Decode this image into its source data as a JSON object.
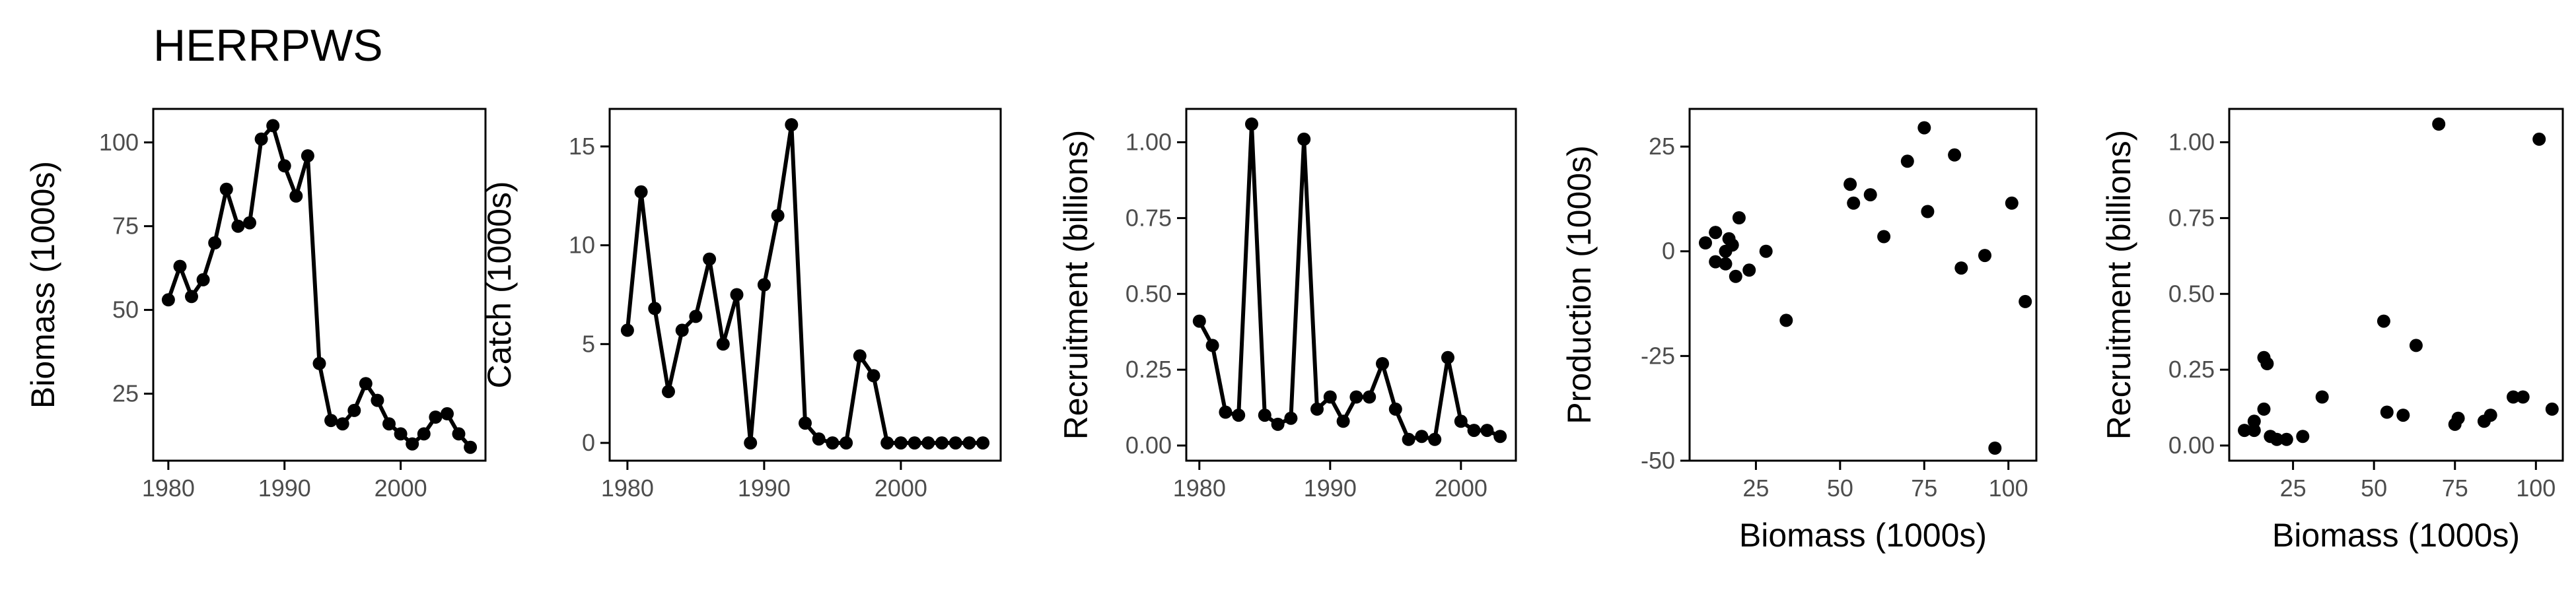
{
  "title": "HERRPWS",
  "style": {
    "ink": "#000000",
    "tick_color": "#4d4d4d",
    "background": "#ffffff"
  },
  "chart_data": [
    {
      "type": "line",
      "xlabel": "",
      "ylabel": "Biomass (1000s)",
      "xlim": [
        1978.7,
        2007.3
      ],
      "ylim": [
        5,
        110
      ],
      "xticks": [
        1980,
        1990,
        2000
      ],
      "yticks": [
        25,
        50,
        75,
        100
      ],
      "grid": false,
      "x": [
        1980,
        1981,
        1982,
        1983,
        1984,
        1985,
        1986,
        1987,
        1988,
        1989,
        1990,
        1991,
        1992,
        1993,
        1994,
        1995,
        1996,
        1997,
        1998,
        1999,
        2000,
        2001,
        2002,
        2003,
        2004,
        2005,
        2006
      ],
      "y": [
        53,
        63,
        54,
        59,
        70,
        86,
        75,
        76,
        101,
        105,
        93,
        84,
        96,
        34,
        17,
        16,
        20,
        28,
        23,
        16,
        13,
        10,
        13,
        18,
        19,
        13,
        9
      ]
    },
    {
      "type": "line",
      "xlabel": "",
      "ylabel": "Catch (1000s)",
      "xlim": [
        1978.7,
        2007.3
      ],
      "ylim": [
        -0.9,
        16.9
      ],
      "xticks": [
        1980,
        1990,
        2000
      ],
      "yticks": [
        0,
        5,
        10,
        15
      ],
      "grid": false,
      "x": [
        1980,
        1981,
        1982,
        1983,
        1984,
        1985,
        1986,
        1987,
        1988,
        1989,
        1990,
        1991,
        1992,
        1993,
        1994,
        1995,
        1996,
        1997,
        1998,
        1999,
        2000,
        2001,
        2002,
        2003,
        2004,
        2005,
        2006
      ],
      "y": [
        5.7,
        12.7,
        6.8,
        2.6,
        5.7,
        6.4,
        9.3,
        5.0,
        7.5,
        0.0,
        8.0,
        11.5,
        16.1,
        1.0,
        0.2,
        0.0,
        0.0,
        4.4,
        3.4,
        0.0,
        0.0,
        0.0,
        0.0,
        0.0,
        0.0,
        0.0,
        0.0
      ]
    },
    {
      "type": "line",
      "xlabel": "",
      "ylabel": "Recruitment (billions)",
      "xlim": [
        1979,
        2004.2
      ],
      "ylim": [
        -0.05,
        1.11
      ],
      "xticks": [
        1980,
        1990,
        2000
      ],
      "yticks": [
        0.0,
        0.25,
        0.5,
        0.75,
        1.0
      ],
      "ytick_labels": [
        "0.00",
        "0.25",
        "0.50",
        "0.75",
        "1.00"
      ],
      "grid": false,
      "x": [
        1980,
        1981,
        1982,
        1983,
        1984,
        1985,
        1986,
        1987,
        1988,
        1989,
        1990,
        1991,
        1992,
        1993,
        1994,
        1995,
        1996,
        1997,
        1998,
        1999,
        2000,
        2001,
        2002,
        2003
      ],
      "y": [
        0.41,
        0.33,
        0.11,
        0.1,
        1.06,
        0.1,
        0.07,
        0.09,
        1.01,
        0.12,
        0.16,
        0.08,
        0.16,
        0.16,
        0.27,
        0.12,
        0.02,
        0.03,
        0.02,
        0.29,
        0.08,
        0.05,
        0.05,
        0.03
      ]
    },
    {
      "type": "scatter",
      "xlabel": "Biomass (1000s)",
      "ylabel": "Production (1000s)",
      "xlim": [
        5.3,
        108.3
      ],
      "ylim": [
        -50,
        34
      ],
      "xticks": [
        25,
        50,
        75,
        100
      ],
      "yticks": [
        -50,
        -25,
        0,
        25
      ],
      "grid": false,
      "x": [
        53,
        63,
        54,
        59,
        70,
        86,
        75,
        76,
        101,
        105,
        93,
        84,
        96,
        34,
        17,
        16,
        20,
        28,
        23,
        16,
        13,
        10,
        13,
        18,
        19,
        13
      ],
      "y": [
        16,
        3.5,
        11.5,
        13.5,
        21.5,
        -4,
        29.5,
        9.5,
        11.5,
        -12,
        -1,
        23,
        -47,
        -16.5,
        3,
        0,
        8,
        0,
        -4.5,
        -3,
        -2.5,
        2,
        4.5,
        1.5,
        -6,
        4.5
      ]
    },
    {
      "type": "scatter",
      "xlabel": "Biomass (1000s)",
      "ylabel": "Recruitment (billions)",
      "xlim": [
        5.3,
        108.3
      ],
      "ylim": [
        -0.05,
        1.11
      ],
      "xticks": [
        25,
        50,
        75,
        100
      ],
      "yticks": [
        0.0,
        0.25,
        0.5,
        0.75,
        1.0
      ],
      "ytick_labels": [
        "0.00",
        "0.25",
        "0.50",
        "0.75",
        "1.00"
      ],
      "grid": false,
      "x": [
        53,
        63,
        54,
        59,
        70,
        86,
        75,
        76,
        101,
        105,
        93,
        84,
        96,
        34,
        17,
        16,
        20,
        28,
        23,
        16,
        13,
        10,
        13,
        18
      ],
      "y": [
        0.41,
        0.33,
        0.11,
        0.1,
        1.06,
        0.1,
        0.07,
        0.09,
        1.01,
        0.12,
        0.16,
        0.08,
        0.16,
        0.16,
        0.27,
        0.12,
        0.02,
        0.03,
        0.02,
        0.29,
        0.08,
        0.05,
        0.05,
        0.03
      ]
    }
  ]
}
